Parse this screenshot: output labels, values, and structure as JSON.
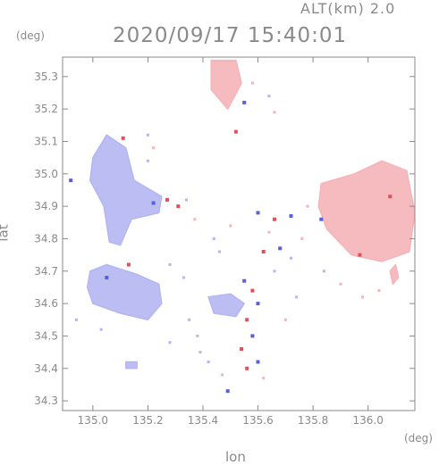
{
  "header": {
    "altitude_label": "ALT(km) 2.0",
    "timestamp": "2020/09/17 15:40:01"
  },
  "axes": {
    "x_title": "lon",
    "y_title": "lat",
    "x_unit": "(deg)",
    "y_unit": "(deg)",
    "x_range": [
      134.89,
      136.17
    ],
    "y_range": [
      34.27,
      35.36
    ],
    "x_ticks": [
      "135.0",
      "135.2",
      "135.4",
      "135.6",
      "135.8",
      "136.0"
    ],
    "y_ticks": [
      "34.3",
      "34.4",
      "34.5",
      "34.6",
      "34.7",
      "34.8",
      "34.9",
      "35.0",
      "35.1",
      "35.2",
      "35.3"
    ]
  },
  "colors": {
    "axis": "#8a8a8a",
    "approaching": "#b4b6f2",
    "receding": "#f4b4b8",
    "strong_approaching": "#5660e0",
    "strong_receding": "#e0505a"
  },
  "regions": [
    {
      "kind": "approaching",
      "points": [
        [
          135.0,
          35.05
        ],
        [
          135.05,
          35.12
        ],
        [
          135.12,
          35.08
        ],
        [
          135.15,
          34.98
        ],
        [
          135.25,
          34.93
        ],
        [
          135.24,
          34.88
        ],
        [
          135.14,
          34.86
        ],
        [
          135.1,
          34.78
        ],
        [
          135.06,
          34.79
        ],
        [
          135.04,
          34.9
        ],
        [
          134.99,
          34.98
        ]
      ]
    },
    {
      "kind": "approaching",
      "points": [
        [
          134.99,
          34.7
        ],
        [
          135.05,
          34.72
        ],
        [
          135.16,
          34.69
        ],
        [
          135.24,
          34.66
        ],
        [
          135.25,
          34.6
        ],
        [
          135.2,
          34.55
        ],
        [
          135.1,
          34.57
        ],
        [
          135.0,
          34.6
        ],
        [
          134.98,
          34.65
        ]
      ]
    },
    {
      "kind": "approaching",
      "points": [
        [
          135.42,
          34.62
        ],
        [
          135.5,
          34.63
        ],
        [
          135.55,
          34.6
        ],
        [
          135.52,
          34.56
        ],
        [
          135.44,
          34.57
        ]
      ]
    },
    {
      "kind": "receding",
      "points": [
        [
          135.43,
          35.35
        ],
        [
          135.52,
          35.35
        ],
        [
          135.54,
          35.28
        ],
        [
          135.49,
          35.2
        ],
        [
          135.43,
          35.26
        ]
      ]
    },
    {
      "kind": "receding",
      "points": [
        [
          135.83,
          34.97
        ],
        [
          135.95,
          35.0
        ],
        [
          136.05,
          35.04
        ],
        [
          136.14,
          35.01
        ],
        [
          136.17,
          34.88
        ],
        [
          136.15,
          34.76
        ],
        [
          136.05,
          34.73
        ],
        [
          135.94,
          34.75
        ],
        [
          135.85,
          34.83
        ],
        [
          135.82,
          34.9
        ]
      ]
    },
    {
      "kind": "receding",
      "points": [
        [
          136.08,
          34.7
        ],
        [
          136.1,
          34.72
        ],
        [
          136.11,
          34.68
        ],
        [
          136.09,
          34.66
        ]
      ]
    },
    {
      "kind": "approaching",
      "points": [
        [
          135.12,
          34.42
        ],
        [
          135.16,
          34.42
        ],
        [
          135.16,
          34.4
        ],
        [
          135.12,
          34.4
        ]
      ]
    }
  ],
  "strong_cells": [
    {
      "kind": "strong_approaching",
      "lon": 135.22,
      "lat": 34.91
    },
    {
      "kind": "strong_receding",
      "lon": 135.27,
      "lat": 34.92
    },
    {
      "kind": "strong_receding",
      "lon": 135.31,
      "lat": 34.9
    },
    {
      "kind": "strong_approaching",
      "lon": 135.6,
      "lat": 34.88
    },
    {
      "kind": "strong_receding",
      "lon": 135.66,
      "lat": 34.86
    },
    {
      "kind": "strong_approaching",
      "lon": 135.72,
      "lat": 34.87
    },
    {
      "kind": "strong_approaching",
      "lon": 135.68,
      "lat": 34.77
    },
    {
      "kind": "strong_receding",
      "lon": 135.62,
      "lat": 34.76
    },
    {
      "kind": "strong_approaching",
      "lon": 135.55,
      "lat": 34.67
    },
    {
      "kind": "strong_receding",
      "lon": 135.58,
      "lat": 34.64
    },
    {
      "kind": "strong_approaching",
      "lon": 135.6,
      "lat": 34.6
    },
    {
      "kind": "strong_receding",
      "lon": 135.56,
      "lat": 34.55
    },
    {
      "kind": "strong_approaching",
      "lon": 135.58,
      "lat": 34.5
    },
    {
      "kind": "strong_receding",
      "lon": 135.54,
      "lat": 34.46
    },
    {
      "kind": "strong_approaching",
      "lon": 135.6,
      "lat": 34.42
    },
    {
      "kind": "strong_receding",
      "lon": 135.56,
      "lat": 34.4
    },
    {
      "kind": "strong_receding",
      "lon": 135.11,
      "lat": 35.11
    },
    {
      "kind": "strong_approaching",
      "lon": 134.92,
      "lat": 34.98
    },
    {
      "kind": "strong_approaching",
      "lon": 135.05,
      "lat": 34.68
    },
    {
      "kind": "strong_receding",
      "lon": 135.13,
      "lat": 34.72
    },
    {
      "kind": "strong_approaching",
      "lon": 135.83,
      "lat": 34.86
    },
    {
      "kind": "strong_receding",
      "lon": 135.97,
      "lat": 34.75
    },
    {
      "kind": "strong_receding",
      "lon": 136.08,
      "lat": 34.93
    },
    {
      "kind": "strong_approaching",
      "lon": 135.55,
      "lat": 35.22
    },
    {
      "kind": "strong_receding",
      "lon": 135.52,
      "lat": 35.13
    },
    {
      "kind": "strong_approaching",
      "lon": 135.49,
      "lat": 34.33
    }
  ],
  "speckles": [
    [
      135.2,
      35.12,
      "approaching"
    ],
    [
      135.22,
      35.08,
      "receding"
    ],
    [
      135.2,
      35.04,
      "approaching"
    ],
    [
      135.34,
      34.92,
      "approaching"
    ],
    [
      135.37,
      34.86,
      "receding"
    ],
    [
      135.44,
      34.8,
      "approaching"
    ],
    [
      135.5,
      34.84,
      "receding"
    ],
    [
      135.46,
      34.76,
      "approaching"
    ],
    [
      135.64,
      34.82,
      "receding"
    ],
    [
      135.72,
      34.74,
      "approaching"
    ],
    [
      135.76,
      34.8,
      "receding"
    ],
    [
      135.66,
      34.7,
      "approaching"
    ],
    [
      135.84,
      34.7,
      "approaching"
    ],
    [
      135.9,
      34.66,
      "receding"
    ],
    [
      136.04,
      34.64,
      "receding"
    ],
    [
      135.35,
      34.55,
      "approaching"
    ],
    [
      135.38,
      34.5,
      "approaching"
    ],
    [
      135.28,
      34.48,
      "approaching"
    ],
    [
      135.42,
      34.42,
      "approaching"
    ],
    [
      135.47,
      34.38,
      "receding"
    ],
    [
      135.62,
      34.37,
      "receding"
    ],
    [
      135.66,
      35.19,
      "receding"
    ],
    [
      135.64,
      35.24,
      "approaching"
    ],
    [
      135.28,
      34.72,
      "approaching"
    ],
    [
      135.33,
      34.68,
      "approaching"
    ],
    [
      135.58,
      35.28,
      "receding"
    ],
    [
      134.94,
      34.55,
      "approaching"
    ],
    [
      135.03,
      34.52,
      "approaching"
    ],
    [
      135.39,
      34.45,
      "approaching"
    ],
    [
      135.7,
      34.55,
      "receding"
    ],
    [
      135.74,
      34.62,
      "approaching"
    ],
    [
      135.78,
      34.9,
      "receding"
    ],
    [
      135.98,
      34.62,
      "receding"
    ]
  ]
}
